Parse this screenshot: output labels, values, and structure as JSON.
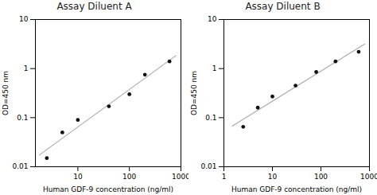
{
  "chart_data": [
    {
      "type": "scatter",
      "title": "Assay Diluent A",
      "x_label": "Human GDF-9 concentration (ng/ml)",
      "y_label": "OD=450 nm",
      "log": true,
      "grid": false,
      "xlim": [
        1.5,
        1000
      ],
      "ylim": [
        0.01,
        10
      ],
      "xticks": [
        10,
        100,
        1000
      ],
      "yticks": [
        0.01,
        0.1,
        1,
        10
      ],
      "series": [
        {
          "type": "line",
          "color": "#aaaaaa",
          "x": [
            1.8,
            800
          ],
          "values": [
            0.01743,
            1.837
          ]
        },
        {
          "type": "scatter",
          "color": "#111111",
          "x": [
            2.5,
            5,
            10,
            40,
            100,
            200,
            600
          ],
          "values": [
            0.015,
            0.05,
            0.09,
            0.17,
            0.3,
            0.75,
            1.4
          ]
        }
      ]
    },
    {
      "type": "scatter",
      "title": "Assay Diluent B",
      "x_label": "Human GDF-9 concentration (ng/ml)",
      "y_label": "OD=450 nm",
      "log": true,
      "grid": false,
      "xlim": [
        1,
        1000
      ],
      "ylim": [
        0.01,
        10
      ],
      "xticks": [
        1,
        10,
        100,
        1000
      ],
      "yticks": [
        0.01,
        0.1,
        1,
        10
      ],
      "series": [
        {
          "type": "line",
          "color": "#aaaaaa",
          "x": [
            1.5,
            800
          ],
          "values": [
            0.06754,
            3.1654
          ]
        },
        {
          "type": "scatter",
          "color": "#111111",
          "x": [
            2.5,
            5,
            10,
            30,
            80,
            200,
            600
          ],
          "values": [
            0.065,
            0.16,
            0.27,
            0.45,
            0.85,
            1.4,
            2.2
          ]
        }
      ]
    }
  ]
}
